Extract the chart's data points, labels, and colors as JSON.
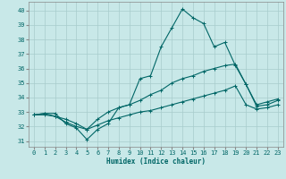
{
  "xlabel": "Humidex (Indice chaleur)",
  "background_color": "#c8e8e8",
  "grid_color": "#a8cccc",
  "line_color": "#006666",
  "xlim": [
    -0.5,
    23.5
  ],
  "ylim": [
    30.6,
    40.6
  ],
  "yticks": [
    31,
    32,
    33,
    34,
    35,
    36,
    37,
    38,
    39,
    40
  ],
  "xticks": [
    0,
    1,
    2,
    3,
    4,
    5,
    6,
    7,
    8,
    9,
    10,
    11,
    12,
    13,
    14,
    15,
    16,
    17,
    18,
    19,
    20,
    21,
    22,
    23
  ],
  "line1_y": [
    32.8,
    32.9,
    32.9,
    32.2,
    31.9,
    31.1,
    31.8,
    32.2,
    33.3,
    33.5,
    35.3,
    35.5,
    37.5,
    38.8,
    40.1,
    39.5,
    39.1,
    37.5,
    37.8,
    36.2,
    34.9,
    33.4,
    33.5,
    33.8
  ],
  "line2_y": [
    32.8,
    32.9,
    32.7,
    32.3,
    32.0,
    31.8,
    32.5,
    33.0,
    33.3,
    33.5,
    33.8,
    34.2,
    34.5,
    35.0,
    35.3,
    35.5,
    35.8,
    36.0,
    36.2,
    36.3,
    34.9,
    33.5,
    33.7,
    33.9
  ],
  "line3_y": [
    32.8,
    32.8,
    32.7,
    32.5,
    32.2,
    31.8,
    32.1,
    32.4,
    32.6,
    32.8,
    33.0,
    33.1,
    33.3,
    33.5,
    33.7,
    33.9,
    34.1,
    34.3,
    34.5,
    34.8,
    33.5,
    33.2,
    33.3,
    33.5
  ],
  "xlabel_fontsize": 5.5,
  "tick_fontsize": 5,
  "linewidth": 0.8,
  "markersize": 2.5
}
